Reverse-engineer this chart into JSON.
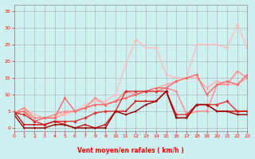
{
  "xlabel": "Vent moyen/en rafales ( km/h )",
  "bg_color": "#cff0f0",
  "grid_color": "#aaaaaa",
  "x_ticks": [
    0,
    1,
    2,
    3,
    4,
    5,
    6,
    7,
    8,
    9,
    10,
    11,
    12,
    13,
    14,
    15,
    16,
    17,
    18,
    19,
    20,
    21,
    22,
    23
  ],
  "y_ticks": [
    0,
    5,
    10,
    15,
    20,
    25,
    30,
    35
  ],
  "xlim": [
    0,
    23
  ],
  "ylim": [
    -1,
    37
  ],
  "series": [
    {
      "x": [
        0,
        1,
        2,
        3,
        4,
        5,
        6,
        7,
        8,
        9,
        10,
        11,
        12,
        13,
        14,
        15,
        16,
        17,
        18,
        19,
        20,
        21,
        22,
        23
      ],
      "y": [
        4.5,
        6,
        4,
        3,
        3,
        4,
        5,
        7,
        8,
        8,
        10,
        19,
        26.5,
        24,
        24,
        16,
        15,
        15,
        25,
        25,
        25,
        24,
        31,
        24
      ],
      "color": "#ffbbbb",
      "lw": 1.0,
      "marker": "o",
      "ms": 2.0
    },
    {
      "x": [
        0,
        1,
        2,
        3,
        4,
        5,
        6,
        7,
        8,
        9,
        10,
        11,
        12,
        13,
        14,
        15,
        16,
        17,
        18,
        19,
        20,
        21,
        22,
        23
      ],
      "y": [
        4.5,
        5,
        3,
        3,
        3,
        4.5,
        5,
        6,
        7,
        7,
        8,
        9,
        10,
        11,
        12,
        13,
        14,
        15,
        15,
        12,
        14,
        13,
        13,
        15
      ],
      "color": "#ffaaaa",
      "lw": 1.0,
      "marker": "o",
      "ms": 2.0
    },
    {
      "x": [
        0,
        1,
        2,
        3,
        4,
        5,
        6,
        7,
        8,
        9,
        10,
        11,
        12,
        13,
        14,
        15,
        16,
        17,
        18,
        19,
        20,
        21,
        22,
        23
      ],
      "y": [
        4.5,
        6,
        3,
        3,
        4,
        5,
        5,
        6,
        9,
        7,
        8,
        11,
        10,
        11,
        11,
        12,
        11,
        4,
        5,
        5,
        13,
        13,
        17,
        15
      ],
      "color": "#ff8888",
      "lw": 1.0,
      "marker": "o",
      "ms": 2.0
    },
    {
      "x": [
        0,
        1,
        2,
        3,
        4,
        5,
        6,
        7,
        8,
        9,
        10,
        11,
        12,
        13,
        14,
        15,
        16,
        17,
        18,
        19,
        20,
        21,
        22,
        23
      ],
      "y": [
        4.5,
        5,
        2,
        3,
        3,
        9,
        5,
        6,
        7,
        7,
        8,
        9,
        10,
        11,
        12,
        12,
        14,
        15,
        16,
        10,
        13,
        14,
        13,
        16
      ],
      "color": "#ff6666",
      "lw": 1.0,
      "marker": "o",
      "ms": 2.0
    },
    {
      "x": [
        0,
        1,
        2,
        3,
        4,
        5,
        6,
        7,
        8,
        9,
        10,
        11,
        12,
        13,
        14,
        15,
        16,
        17,
        18,
        19,
        20,
        21,
        22,
        23
      ],
      "y": [
        4.5,
        4,
        2,
        1,
        2,
        2,
        2,
        3,
        4.5,
        5,
        5,
        11,
        11,
        11,
        11,
        11,
        4,
        4,
        7,
        7,
        7,
        8,
        5,
        5
      ],
      "color": "#dd3333",
      "lw": 1.0,
      "marker": "D",
      "ms": 2.0
    },
    {
      "x": [
        0,
        1,
        2,
        3,
        4,
        5,
        6,
        7,
        8,
        9,
        10,
        11,
        12,
        13,
        14,
        15,
        16,
        17,
        18,
        19,
        20,
        21,
        22,
        23
      ],
      "y": [
        5,
        1,
        1,
        1,
        2,
        1,
        0,
        1,
        0,
        1,
        5,
        5,
        8,
        8,
        8,
        11,
        3,
        3,
        7,
        7,
        5,
        5,
        5,
        5
      ],
      "color": "#cc1111",
      "lw": 1.0,
      "marker": "s",
      "ms": 2.0
    },
    {
      "x": [
        0,
        1,
        2,
        3,
        4,
        5,
        6,
        7,
        8,
        9,
        10,
        11,
        12,
        13,
        14,
        15,
        16,
        17,
        18,
        19,
        20,
        21,
        22,
        23
      ],
      "y": [
        4,
        0,
        0,
        0,
        1,
        1,
        0,
        0,
        0,
        0,
        5,
        4,
        5,
        7,
        8,
        11,
        3,
        3,
        7,
        7,
        5,
        5,
        4,
        4
      ],
      "color": "#990000",
      "lw": 1.0,
      "marker": "v",
      "ms": 2.0
    }
  ]
}
